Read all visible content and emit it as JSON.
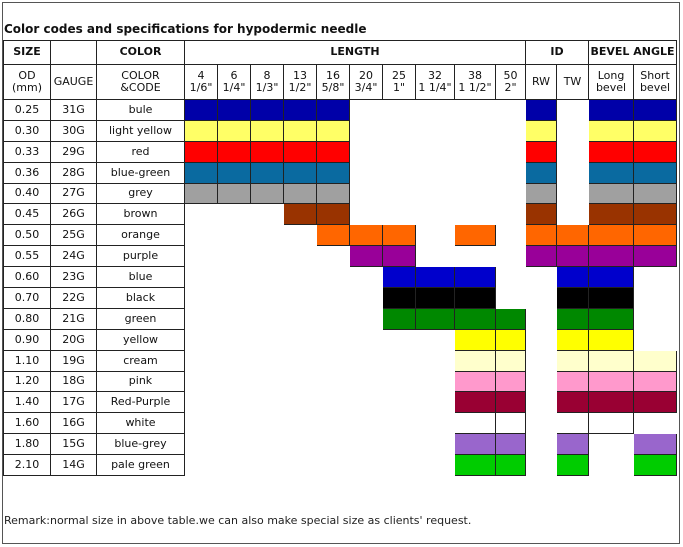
{
  "title": "Color codes and specifications for hypodermic needle",
  "headers": {
    "size": "SIZE",
    "color": "COLOR",
    "length": "LENGTH",
    "id": "ID",
    "bevel_angle": "BEVEL ANGLE",
    "od": [
      "OD",
      "(mm)"
    ],
    "gauge": "GAUGE",
    "color_code": [
      "COLOR",
      "&CODE"
    ],
    "lengths": [
      [
        "4",
        "1/6\""
      ],
      [
        "6",
        "1/4\""
      ],
      [
        "8",
        "1/3\""
      ],
      [
        "13",
        "1/2\""
      ],
      [
        "16",
        "5/8\""
      ],
      [
        "20",
        "3/4\""
      ],
      [
        "25",
        "1\""
      ],
      [
        "32",
        "1 1/4\""
      ],
      [
        "38",
        "1 1/2\""
      ],
      [
        "50",
        "2\""
      ]
    ],
    "id_sub": [
      "RW",
      "TW"
    ],
    "bevel_sub": [
      [
        "Long",
        "bevel"
      ],
      [
        "Short",
        "bevel"
      ]
    ]
  },
  "rows": [
    {
      "od": "0.25",
      "gauge": "31G",
      "code": "bule",
      "color": "#0000a8",
      "len": [
        1,
        1,
        1,
        1,
        1,
        0,
        0,
        0,
        0,
        0
      ],
      "rw": 1,
      "tw": 0,
      "long": 1,
      "short": 1
    },
    {
      "od": "0.30",
      "gauge": "30G",
      "code": "light yellow",
      "color": "#ffff66",
      "len": [
        1,
        1,
        1,
        1,
        1,
        0,
        0,
        0,
        0,
        0
      ],
      "rw": 1,
      "tw": 0,
      "long": 1,
      "short": 1
    },
    {
      "od": "0.33",
      "gauge": "29G",
      "code": "red",
      "color": "#ff0000",
      "len": [
        1,
        1,
        1,
        1,
        1,
        0,
        0,
        0,
        0,
        0
      ],
      "rw": 1,
      "tw": 0,
      "long": 1,
      "short": 1
    },
    {
      "od": "0.36",
      "gauge": "28G",
      "code": "blue-green",
      "color": "#0a6aa0",
      "len": [
        1,
        1,
        1,
        1,
        1,
        0,
        0,
        0,
        0,
        0
      ],
      "rw": 1,
      "tw": 0,
      "long": 1,
      "short": 1
    },
    {
      "od": "0.40",
      "gauge": "27G",
      "code": "grey",
      "color": "#a0a0a0",
      "len": [
        1,
        1,
        1,
        1,
        1,
        0,
        0,
        0,
        0,
        0
      ],
      "rw": 1,
      "tw": 0,
      "long": 1,
      "short": 1
    },
    {
      "od": "0.45",
      "gauge": "26G",
      "code": "brown",
      "color": "#993300",
      "len": [
        0,
        0,
        0,
        1,
        1,
        0,
        0,
        0,
        0,
        0
      ],
      "rw": 1,
      "tw": 0,
      "long": 1,
      "short": 1
    },
    {
      "od": "0.50",
      "gauge": "25G",
      "code": "orange",
      "color": "#ff6600",
      "len": [
        0,
        0,
        0,
        0,
        1,
        1,
        1,
        0,
        1,
        0
      ],
      "rw": 1,
      "tw": 1,
      "long": 1,
      "short": 1
    },
    {
      "od": "0.55",
      "gauge": "24G",
      "code": "purple",
      "color": "#990099",
      "len": [
        0,
        0,
        0,
        0,
        0,
        1,
        1,
        0,
        0,
        0
      ],
      "rw": 1,
      "tw": 1,
      "long": 1,
      "short": 1
    },
    {
      "od": "0.60",
      "gauge": "23G",
      "code": "blue",
      "color": "#0000cc",
      "len": [
        0,
        0,
        0,
        0,
        0,
        0,
        1,
        1,
        1,
        0
      ],
      "rw": 0,
      "tw": 1,
      "long": 1,
      "short": 0
    },
    {
      "od": "0.70",
      "gauge": "22G",
      "code": "black",
      "color": "#000000",
      "len": [
        0,
        0,
        0,
        0,
        0,
        0,
        1,
        1,
        1,
        0
      ],
      "rw": 0,
      "tw": 1,
      "long": 1,
      "short": 0
    },
    {
      "od": "0.80",
      "gauge": "21G",
      "code": "green",
      "color": "#008800",
      "len": [
        0,
        0,
        0,
        0,
        0,
        0,
        1,
        1,
        1,
        1
      ],
      "rw": 0,
      "tw": 1,
      "long": 1,
      "short": 0
    },
    {
      "od": "0.90",
      "gauge": "20G",
      "code": "yellow",
      "color": "#ffff00",
      "len": [
        0,
        0,
        0,
        0,
        0,
        0,
        0,
        0,
        1,
        1
      ],
      "rw": 0,
      "tw": 1,
      "long": 1,
      "short": 0
    },
    {
      "od": "1.10",
      "gauge": "19G",
      "code": "cream",
      "color": "#ffffcc",
      "len": [
        0,
        0,
        0,
        0,
        0,
        0,
        0,
        0,
        1,
        1
      ],
      "rw": 0,
      "tw": 1,
      "long": 1,
      "short": 1
    },
    {
      "od": "1.20",
      "gauge": "18G",
      "code": "pink",
      "color": "#ff99cc",
      "len": [
        0,
        0,
        0,
        0,
        0,
        0,
        0,
        0,
        1,
        1
      ],
      "rw": 0,
      "tw": 1,
      "long": 1,
      "short": 1
    },
    {
      "od": "1.40",
      "gauge": "17G",
      "code": "Red-Purple",
      "color": "#990033",
      "len": [
        0,
        0,
        0,
        0,
        0,
        0,
        0,
        0,
        1,
        1
      ],
      "rw": 0,
      "tw": 1,
      "long": 1,
      "short": 1
    },
    {
      "od": "1.60",
      "gauge": "16G",
      "code": "white",
      "color": "#ffffff",
      "len": [
        0,
        0,
        0,
        0,
        0,
        0,
        0,
        0,
        1,
        1
      ],
      "rw": 0,
      "tw": 1,
      "long": 1,
      "short": 0
    },
    {
      "od": "1.80",
      "gauge": "15G",
      "code": "blue-grey",
      "color": "#9966cc",
      "len": [
        0,
        0,
        0,
        0,
        0,
        0,
        0,
        0,
        1,
        1
      ],
      "rw": 0,
      "tw": 1,
      "long": 0,
      "short": 1
    },
    {
      "od": "2.10",
      "gauge": "14G",
      "code": "pale green",
      "color": "#00cc00",
      "len": [
        0,
        0,
        0,
        0,
        0,
        0,
        0,
        0,
        1,
        1
      ],
      "rw": 0,
      "tw": 1,
      "long": 0,
      "short": 1
    }
  ],
  "remark": "Remark:normal size in above table.we can also make special size as clients' request."
}
